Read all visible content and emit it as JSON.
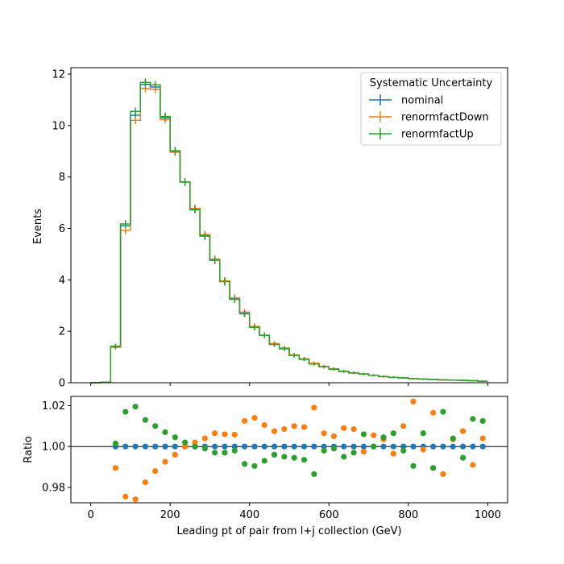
{
  "chart_data": [
    {
      "type": "step",
      "title": "",
      "xlabel": "",
      "ylabel": "Events",
      "xlim": [
        -50,
        1050
      ],
      "ylim": [
        0,
        12.25
      ],
      "yticks": [
        0,
        2,
        4,
        6,
        8,
        10,
        12
      ],
      "ytick_labels": [
        "0",
        "2",
        "4",
        "6",
        "8",
        "10",
        "12"
      ],
      "bin_edges": [
        0,
        25,
        50,
        75,
        100,
        125,
        150,
        175,
        200,
        225,
        250,
        275,
        300,
        325,
        350,
        375,
        400,
        425,
        450,
        475,
        500,
        525,
        550,
        575,
        600,
        625,
        650,
        675,
        700,
        725,
        750,
        775,
        800,
        825,
        850,
        875,
        900,
        925,
        950,
        975,
        1000
      ],
      "legend": {
        "title": "Systematic Uncertainty",
        "placement": "upper right"
      },
      "series": [
        {
          "name": "nominal",
          "color": "#1f77b4",
          "values": [
            0.0,
            0.02,
            1.4,
            6.1,
            10.4,
            11.6,
            11.5,
            10.3,
            9.0,
            7.8,
            6.75,
            5.72,
            4.78,
            3.94,
            3.26,
            2.7,
            2.16,
            1.84,
            1.5,
            1.33,
            1.07,
            0.92,
            0.74,
            0.62,
            0.53,
            0.44,
            0.38,
            0.34,
            0.29,
            0.24,
            0.21,
            0.19,
            0.16,
            0.14,
            0.125,
            0.11,
            0.1,
            0.09,
            0.08,
            0.06
          ]
        },
        {
          "name": "renormfactDown",
          "color": "#ff7f0e",
          "values": [
            0.0,
            0.02,
            1.37,
            5.92,
            10.2,
            11.44,
            11.4,
            10.23,
            8.96,
            7.81,
            6.78,
            5.76,
            4.81,
            3.96,
            3.3,
            2.74,
            2.19,
            1.85,
            1.52,
            1.35,
            1.08,
            0.93,
            0.75,
            0.63,
            0.54,
            0.45,
            0.38,
            0.34,
            0.29,
            0.24,
            0.21,
            0.19,
            0.16,
            0.14,
            0.125,
            0.11,
            0.1,
            0.09,
            0.08,
            0.06
          ]
        },
        {
          "name": "renormfactUp",
          "color": "#2ca02c",
          "values": [
            0.0,
            0.02,
            1.42,
            6.17,
            10.55,
            11.68,
            11.58,
            10.35,
            9.02,
            7.8,
            6.73,
            5.7,
            4.76,
            3.93,
            3.24,
            2.68,
            2.15,
            1.84,
            1.49,
            1.32,
            1.06,
            0.91,
            0.73,
            0.62,
            0.53,
            0.44,
            0.38,
            0.34,
            0.29,
            0.24,
            0.21,
            0.19,
            0.16,
            0.14,
            0.125,
            0.11,
            0.1,
            0.09,
            0.08,
            0.06
          ]
        }
      ]
    },
    {
      "type": "scatter",
      "title": "",
      "xlabel": "Leading pt of pair from l+j collection (GeV)",
      "ylabel": "Ratio",
      "xlim": [
        -50,
        1050
      ],
      "ylim": [
        0.9725,
        1.0245
      ],
      "xticks": [
        0,
        200,
        400,
        600,
        800,
        1000
      ],
      "xtick_labels": [
        "0",
        "200",
        "400",
        "600",
        "800",
        "1000"
      ],
      "yticks": [
        0.98,
        1.0,
        1.02
      ],
      "ytick_labels": [
        "0.98",
        "1.00",
        "1.02"
      ],
      "reference_line": 1.0,
      "x": [
        62.5,
        87.5,
        112.5,
        137.5,
        162.5,
        187.5,
        212.5,
        237.5,
        262.5,
        287.5,
        312.5,
        337.5,
        362.5,
        387.5,
        412.5,
        437.5,
        462.5,
        487.5,
        512.5,
        537.5,
        562.5,
        587.5,
        612.5,
        637.5,
        662.5,
        687.5,
        712.5,
        737.5,
        762.5,
        787.5,
        812.5,
        837.5,
        862.5,
        887.5,
        912.5,
        937.5,
        962.5,
        987.5
      ],
      "series": [
        {
          "name": "nominal",
          "color": "#1f77b4",
          "values": [
            1.0,
            1.0,
            1.0,
            1.0,
            1.0,
            1.0,
            1.0,
            1.0,
            1.0,
            1.0,
            1.0,
            1.0,
            1.0,
            1.0,
            1.0,
            1.0,
            1.0,
            1.0,
            1.0,
            1.0,
            1.0,
            1.0,
            1.0,
            1.0,
            1.0,
            1.0,
            1.0,
            1.0,
            1.0,
            1.0,
            1.0,
            1.0,
            1.0,
            1.0,
            1.0,
            1.0,
            1.0,
            1.0
          ]
        },
        {
          "name": "renormfactDown",
          "color": "#ff7f0e",
          "values": [
            0.9895,
            0.9755,
            0.9742,
            0.9825,
            0.988,
            0.9925,
            0.996,
            1.0,
            1.002,
            1.004,
            1.0065,
            1.006,
            1.0058,
            1.0125,
            1.014,
            1.0105,
            1.0075,
            1.0085,
            1.01,
            1.0095,
            1.019,
            1.0065,
            1.005,
            1.009,
            1.0085,
            0.9975,
            1.0055,
            1.0035,
            0.9965,
            1.01,
            1.022,
            0.9985,
            1.0165,
            0.9865,
            1.0035,
            1.0075,
            0.991,
            1.004
          ]
        },
        {
          "name": "renormfactUp",
          "color": "#2ca02c",
          "values": [
            1.0015,
            1.017,
            1.0195,
            1.013,
            1.01,
            1.007,
            1.0045,
            1.002,
            1.0,
            0.999,
            0.997,
            0.997,
            0.998,
            0.9915,
            0.9905,
            0.993,
            0.996,
            0.995,
            0.9945,
            0.9935,
            0.9865,
            0.998,
            0.999,
            0.995,
            0.997,
            1.006,
            1.0,
            1.0045,
            1.0065,
            0.998,
            0.9905,
            1.0065,
            0.9895,
            1.017,
            1.004,
            0.9945,
            1.0135,
            1.0125
          ]
        }
      ]
    }
  ]
}
